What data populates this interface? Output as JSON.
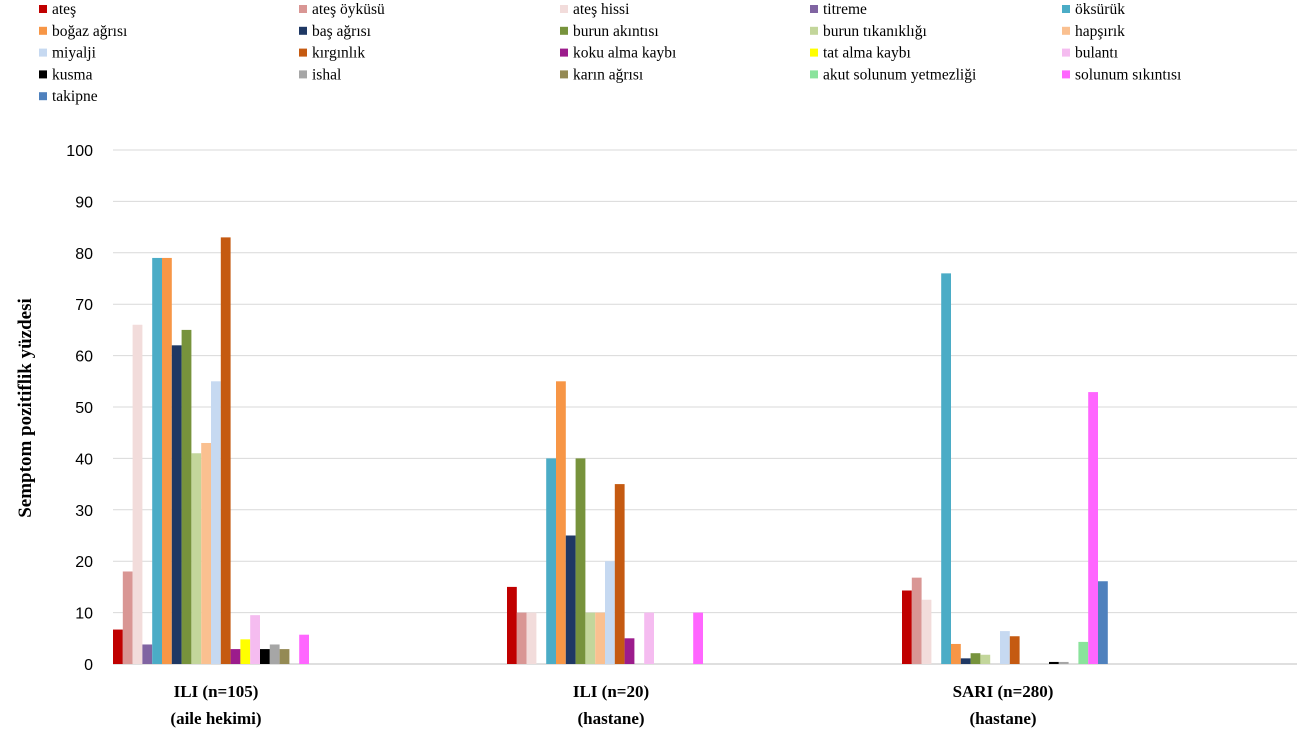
{
  "chart_data": {
    "type": "bar",
    "ylabel": "Semptom pozitiflik  yüzdesi",
    "xlabel": "",
    "ylim": [
      0,
      100
    ],
    "yticks": [
      0,
      10,
      20,
      30,
      40,
      50,
      60,
      70,
      80,
      90,
      100
    ],
    "grid": true,
    "legend_position": "top",
    "categories": [
      [
        "ILI (n=105)",
        "(aile hekimi)"
      ],
      [
        "ILI (n=20)",
        "(hastane)"
      ],
      [
        "SARI (n=280)",
        "(hastane)"
      ]
    ],
    "series": [
      {
        "name": "ateş",
        "color": "#C00000",
        "values": [
          6.7,
          15,
          14.3
        ]
      },
      {
        "name": "ateş öyküsü",
        "color": "#D99694",
        "values": [
          18,
          10,
          16.8
        ]
      },
      {
        "name": "ateş hissi",
        "color": "#F2DCDB",
        "values": [
          66,
          10,
          12.5
        ]
      },
      {
        "name": "titreme",
        "color": "#8064A2",
        "values": [
          3.8,
          0,
          0
        ]
      },
      {
        "name": "öksürük",
        "color": "#4BACC6",
        "values": [
          79,
          40,
          76
        ]
      },
      {
        "name": "boğaz ağrısı",
        "color": "#F79646",
        "values": [
          79,
          55,
          3.9
        ]
      },
      {
        "name": "baş ağrısı",
        "color": "#1F3864",
        "values": [
          62,
          25,
          1.1
        ]
      },
      {
        "name": "burun akıntısı",
        "color": "#77933C",
        "values": [
          65,
          40,
          2.1
        ]
      },
      {
        "name": "burun tıkanıklığı",
        "color": "#C3D69B",
        "values": [
          41,
          10,
          1.8
        ]
      },
      {
        "name": "hapşırık",
        "color": "#FAC090",
        "values": [
          43,
          10,
          0
        ]
      },
      {
        "name": "miyalji",
        "color": "#C6D9F1",
        "values": [
          55,
          20,
          6.4
        ]
      },
      {
        "name": "kırgınlık",
        "color": "#C55A11",
        "values": [
          83,
          35,
          5.4
        ]
      },
      {
        "name": "koku alma  kaybı",
        "color": "#9C1C8C",
        "values": [
          2.9,
          5,
          0
        ]
      },
      {
        "name": "tat alma kaybı",
        "color": "#FFFF00",
        "values": [
          4.8,
          0,
          0
        ]
      },
      {
        "name": "bulantı",
        "color": "#F5BCF0",
        "values": [
          9.5,
          10,
          0
        ]
      },
      {
        "name": "kusma",
        "color": "#000000",
        "values": [
          2.9,
          0,
          0.4
        ]
      },
      {
        "name": "ishal",
        "color": "#A6A6A6",
        "values": [
          3.8,
          0,
          0.4
        ]
      },
      {
        "name": "karın ağrısı",
        "color": "#948A54",
        "values": [
          2.9,
          0,
          0
        ]
      },
      {
        "name": "akut solunum yetmezliği",
        "color": "#8AE39C",
        "values": [
          0,
          0,
          4.3
        ]
      },
      {
        "name": "solunum sıkıntısı",
        "color": "#FF66FF",
        "values": [
          5.7,
          10,
          52.9
        ]
      },
      {
        "name": "takipne",
        "color": "#4F81BD",
        "values": [
          0,
          0,
          16.1
        ]
      }
    ]
  }
}
